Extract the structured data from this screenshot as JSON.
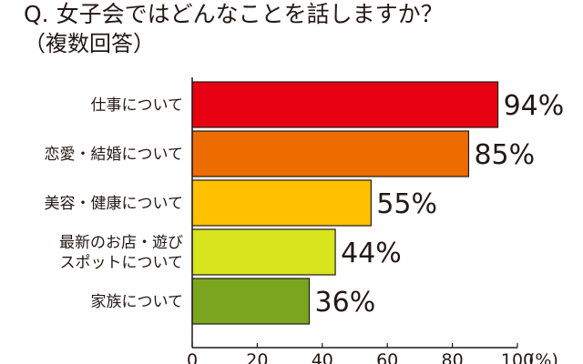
{
  "title": "Q. 女子会ではどんなことを話しますか？",
  "subtitle": "（複数回答）",
  "chart_data": {
    "type": "bar",
    "orientation": "horizontal",
    "categories": [
      [
        "仕事について"
      ],
      [
        "恋愛・結婚について"
      ],
      [
        "美容・健康について"
      ],
      [
        "最新のお店・遊び",
        "スポットについて"
      ],
      [
        "家族について"
      ]
    ],
    "values": [
      94,
      85,
      55,
      44,
      36
    ],
    "value_labels": [
      "94%",
      "85%",
      "55%",
      "44%",
      "36%"
    ],
    "colors": [
      "#e60012",
      "#ed6c00",
      "#ffc000",
      "#d7e41e",
      "#7aa51e"
    ],
    "xlim": [
      0,
      100
    ],
    "x_ticks": [
      "0",
      "20",
      "40",
      "60",
      "80",
      "100"
    ],
    "x_unit": "(%)",
    "grid": false
  }
}
